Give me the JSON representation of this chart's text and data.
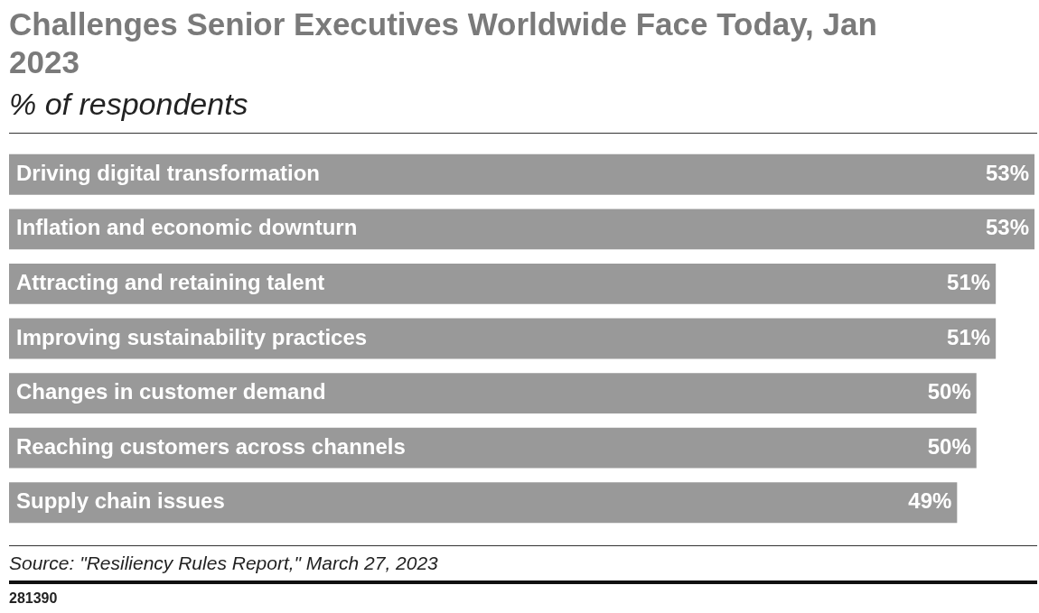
{
  "chart_data": {
    "type": "bar",
    "orientation": "horizontal",
    "title": "Challenges Senior Executives Worldwide Face Today, Jan 2023",
    "subtitle": "% of respondents",
    "categories": [
      "Driving digital transformation",
      "Inflation and economic downturn",
      "Attracting and retaining talent",
      "Improving sustainability practices",
      "Changes in customer demand",
      "Reaching customers across channels",
      "Supply chain issues"
    ],
    "values": [
      53,
      53,
      51,
      51,
      50,
      50,
      49
    ],
    "value_labels": [
      "53%",
      "53%",
      "51%",
      "51%",
      "50%",
      "50%",
      "49%"
    ],
    "color": "#999999",
    "legend": false,
    "annotations": [
      "Source: \"Resiliency Rules Report,\" March 27, 2023",
      "281390"
    ]
  }
}
